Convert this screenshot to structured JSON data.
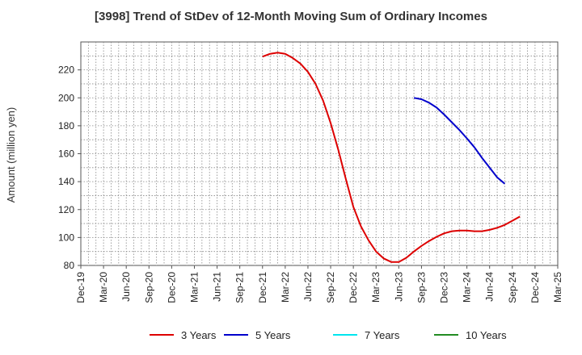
{
  "chart_data": {
    "type": "line",
    "title": "[3998]  Trend of StDev of 12-Month Moving Sum of Ordinary Incomes",
    "xlabel": "",
    "ylabel": "Amount (million yen)",
    "x_ticks": [
      "Dec-19",
      "Mar-20",
      "Jun-20",
      "Sep-20",
      "Dec-20",
      "Mar-21",
      "Jun-21",
      "Sep-21",
      "Dec-21",
      "Mar-22",
      "Jun-22",
      "Sep-22",
      "Dec-22",
      "Mar-23",
      "Jun-23",
      "Sep-23",
      "Dec-23",
      "Mar-24",
      "Jun-24",
      "Sep-24",
      "Dec-24",
      "Mar-25"
    ],
    "ylim": [
      80,
      240
    ],
    "y_ticks": [
      80,
      100,
      120,
      140,
      160,
      180,
      200,
      220
    ],
    "grid": true,
    "legend_position": "bottom",
    "series": [
      {
        "name": "3 Years",
        "color": "#dd0000",
        "points": [
          [
            "Dec-21",
            229.5
          ],
          [
            "Jan-22",
            231.5
          ],
          [
            "Feb-22",
            232.3
          ],
          [
            "Mar-22",
            231.5
          ],
          [
            "Apr-22",
            228.5
          ],
          [
            "May-22",
            224.5
          ],
          [
            "Jun-22",
            218.5
          ],
          [
            "Jul-22",
            210
          ],
          [
            "Aug-22",
            198
          ],
          [
            "Sep-22",
            182
          ],
          [
            "Oct-22",
            163
          ],
          [
            "Nov-22",
            142
          ],
          [
            "Dec-22",
            122
          ],
          [
            "Jan-23",
            108
          ],
          [
            "Feb-23",
            98
          ],
          [
            "Mar-23",
            90
          ],
          [
            "Apr-23",
            85
          ],
          [
            "May-23",
            82.5
          ],
          [
            "Jun-23",
            82.5
          ],
          [
            "Jul-23",
            85.5
          ],
          [
            "Aug-23",
            90
          ],
          [
            "Sep-23",
            94
          ],
          [
            "Oct-23",
            97.5
          ],
          [
            "Nov-23",
            100.5
          ],
          [
            "Dec-23",
            103
          ],
          [
            "Jan-24",
            104.5
          ],
          [
            "Feb-24",
            105
          ],
          [
            "Mar-24",
            105
          ],
          [
            "Apr-24",
            104.5
          ],
          [
            "May-24",
            104.5
          ],
          [
            "Jun-24",
            105.5
          ],
          [
            "Jul-24",
            107
          ],
          [
            "Aug-24",
            109
          ],
          [
            "Sep-24",
            112
          ],
          [
            "Oct-24",
            115
          ]
        ]
      },
      {
        "name": "5 Years",
        "color": "#0000cc",
        "points": [
          [
            "Aug-23",
            200
          ],
          [
            "Sep-23",
            199
          ],
          [
            "Oct-23",
            196.5
          ],
          [
            "Nov-23",
            193
          ],
          [
            "Dec-23",
            188
          ],
          [
            "Jan-24",
            182.5
          ],
          [
            "Feb-24",
            177
          ],
          [
            "Mar-24",
            171
          ],
          [
            "Apr-24",
            164.5
          ],
          [
            "May-24",
            157
          ],
          [
            "Jun-24",
            150
          ],
          [
            "Jul-24",
            143
          ],
          [
            "Aug-24",
            138.5
          ]
        ]
      },
      {
        "name": "7 Years",
        "color": "#00e5ee",
        "points": []
      },
      {
        "name": "10 Years",
        "color": "#228b22",
        "points": []
      }
    ]
  }
}
